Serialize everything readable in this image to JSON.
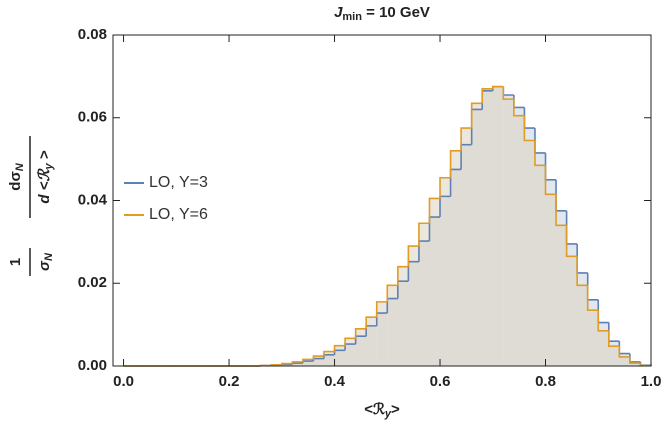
{
  "chart_data": {
    "type": "histogram",
    "title": {
      "main": "J",
      "sub": "min",
      "rest": " = 10 GeV"
    },
    "xlabel": {
      "main": "<ℛ",
      "sub": "y",
      "end": ">"
    },
    "ylabel": {
      "left_num": "1",
      "left_den": "σ",
      "left_den_sub": "N",
      "right_num": "dσ",
      "right_num_sub": "N",
      "right_den": "d <ℛ",
      "right_den_sub": "y",
      "right_den_end": " >"
    },
    "bins": [
      0,
      0.02,
      0.04,
      0.06,
      0.08,
      0.1,
      0.12,
      0.14,
      0.16,
      0.18,
      0.2,
      0.22,
      0.24,
      0.26,
      0.28,
      0.3,
      0.32,
      0.34,
      0.36,
      0.38,
      0.4,
      0.42,
      0.44,
      0.46,
      0.48,
      0.5,
      0.52,
      0.54,
      0.56,
      0.58,
      0.6,
      0.62,
      0.64,
      0.66,
      0.68,
      0.7,
      0.72,
      0.74,
      0.76,
      0.78,
      0.8,
      0.82,
      0.84,
      0.86,
      0.88,
      0.9,
      0.92,
      0.94,
      0.96,
      0.98,
      1.0
    ],
    "series": [
      {
        "name": "LO, Y=3",
        "color": "#5e81b5",
        "fill": "#c9d3e0",
        "values": [
          0,
          0,
          0,
          0,
          0,
          0,
          0,
          0,
          0,
          0,
          0,
          0,
          0,
          0.0001,
          0.0002,
          0.0004,
          0.0007,
          0.0012,
          0.0018,
          0.0027,
          0.0038,
          0.0053,
          0.0072,
          0.0097,
          0.0128,
          0.0163,
          0.0205,
          0.0252,
          0.0302,
          0.036,
          0.041,
          0.0475,
          0.0535,
          0.062,
          0.0665,
          0.0675,
          0.0655,
          0.0625,
          0.0575,
          0.0515,
          0.045,
          0.0375,
          0.0295,
          0.0225,
          0.016,
          0.0105,
          0.006,
          0.003,
          0.001,
          0.0002
        ]
      },
      {
        "name": "LO, Y=6",
        "color": "#e19c24",
        "fill": "#ddd3bf",
        "values": [
          0,
          0,
          0,
          0,
          0,
          0,
          0,
          0,
          0,
          0,
          0,
          0,
          0,
          0.0001,
          0.0003,
          0.0006,
          0.001,
          0.0016,
          0.0024,
          0.0035,
          0.0049,
          0.0067,
          0.009,
          0.0118,
          0.0155,
          0.0195,
          0.024,
          0.029,
          0.0345,
          0.0405,
          0.0455,
          0.052,
          0.0575,
          0.0635,
          0.067,
          0.0675,
          0.0645,
          0.0605,
          0.0545,
          0.0485,
          0.0415,
          0.034,
          0.0265,
          0.0195,
          0.0135,
          0.0085,
          0.0048,
          0.0022,
          0.0007,
          0.0001
        ]
      }
    ],
    "xlim": [
      -0.02,
      1.0
    ],
    "ylim": [
      0,
      0.08
    ],
    "xticks": [
      {
        "value": 0,
        "label": "0.0"
      },
      {
        "value": 0.2,
        "label": "0.2"
      },
      {
        "value": 0.4,
        "label": "0.4"
      },
      {
        "value": 0.6,
        "label": "0.6"
      },
      {
        "value": 0.8,
        "label": "0.8"
      },
      {
        "value": 1.0,
        "label": "1.0"
      }
    ],
    "yticks": [
      {
        "value": 0,
        "label": "0.00"
      },
      {
        "value": 0.02,
        "label": "0.02"
      },
      {
        "value": 0.04,
        "label": "0.04"
      },
      {
        "value": 0.06,
        "label": "0.06"
      },
      {
        "value": 0.08,
        "label": "0.08"
      }
    ],
    "legend": "left",
    "grid": false
  }
}
